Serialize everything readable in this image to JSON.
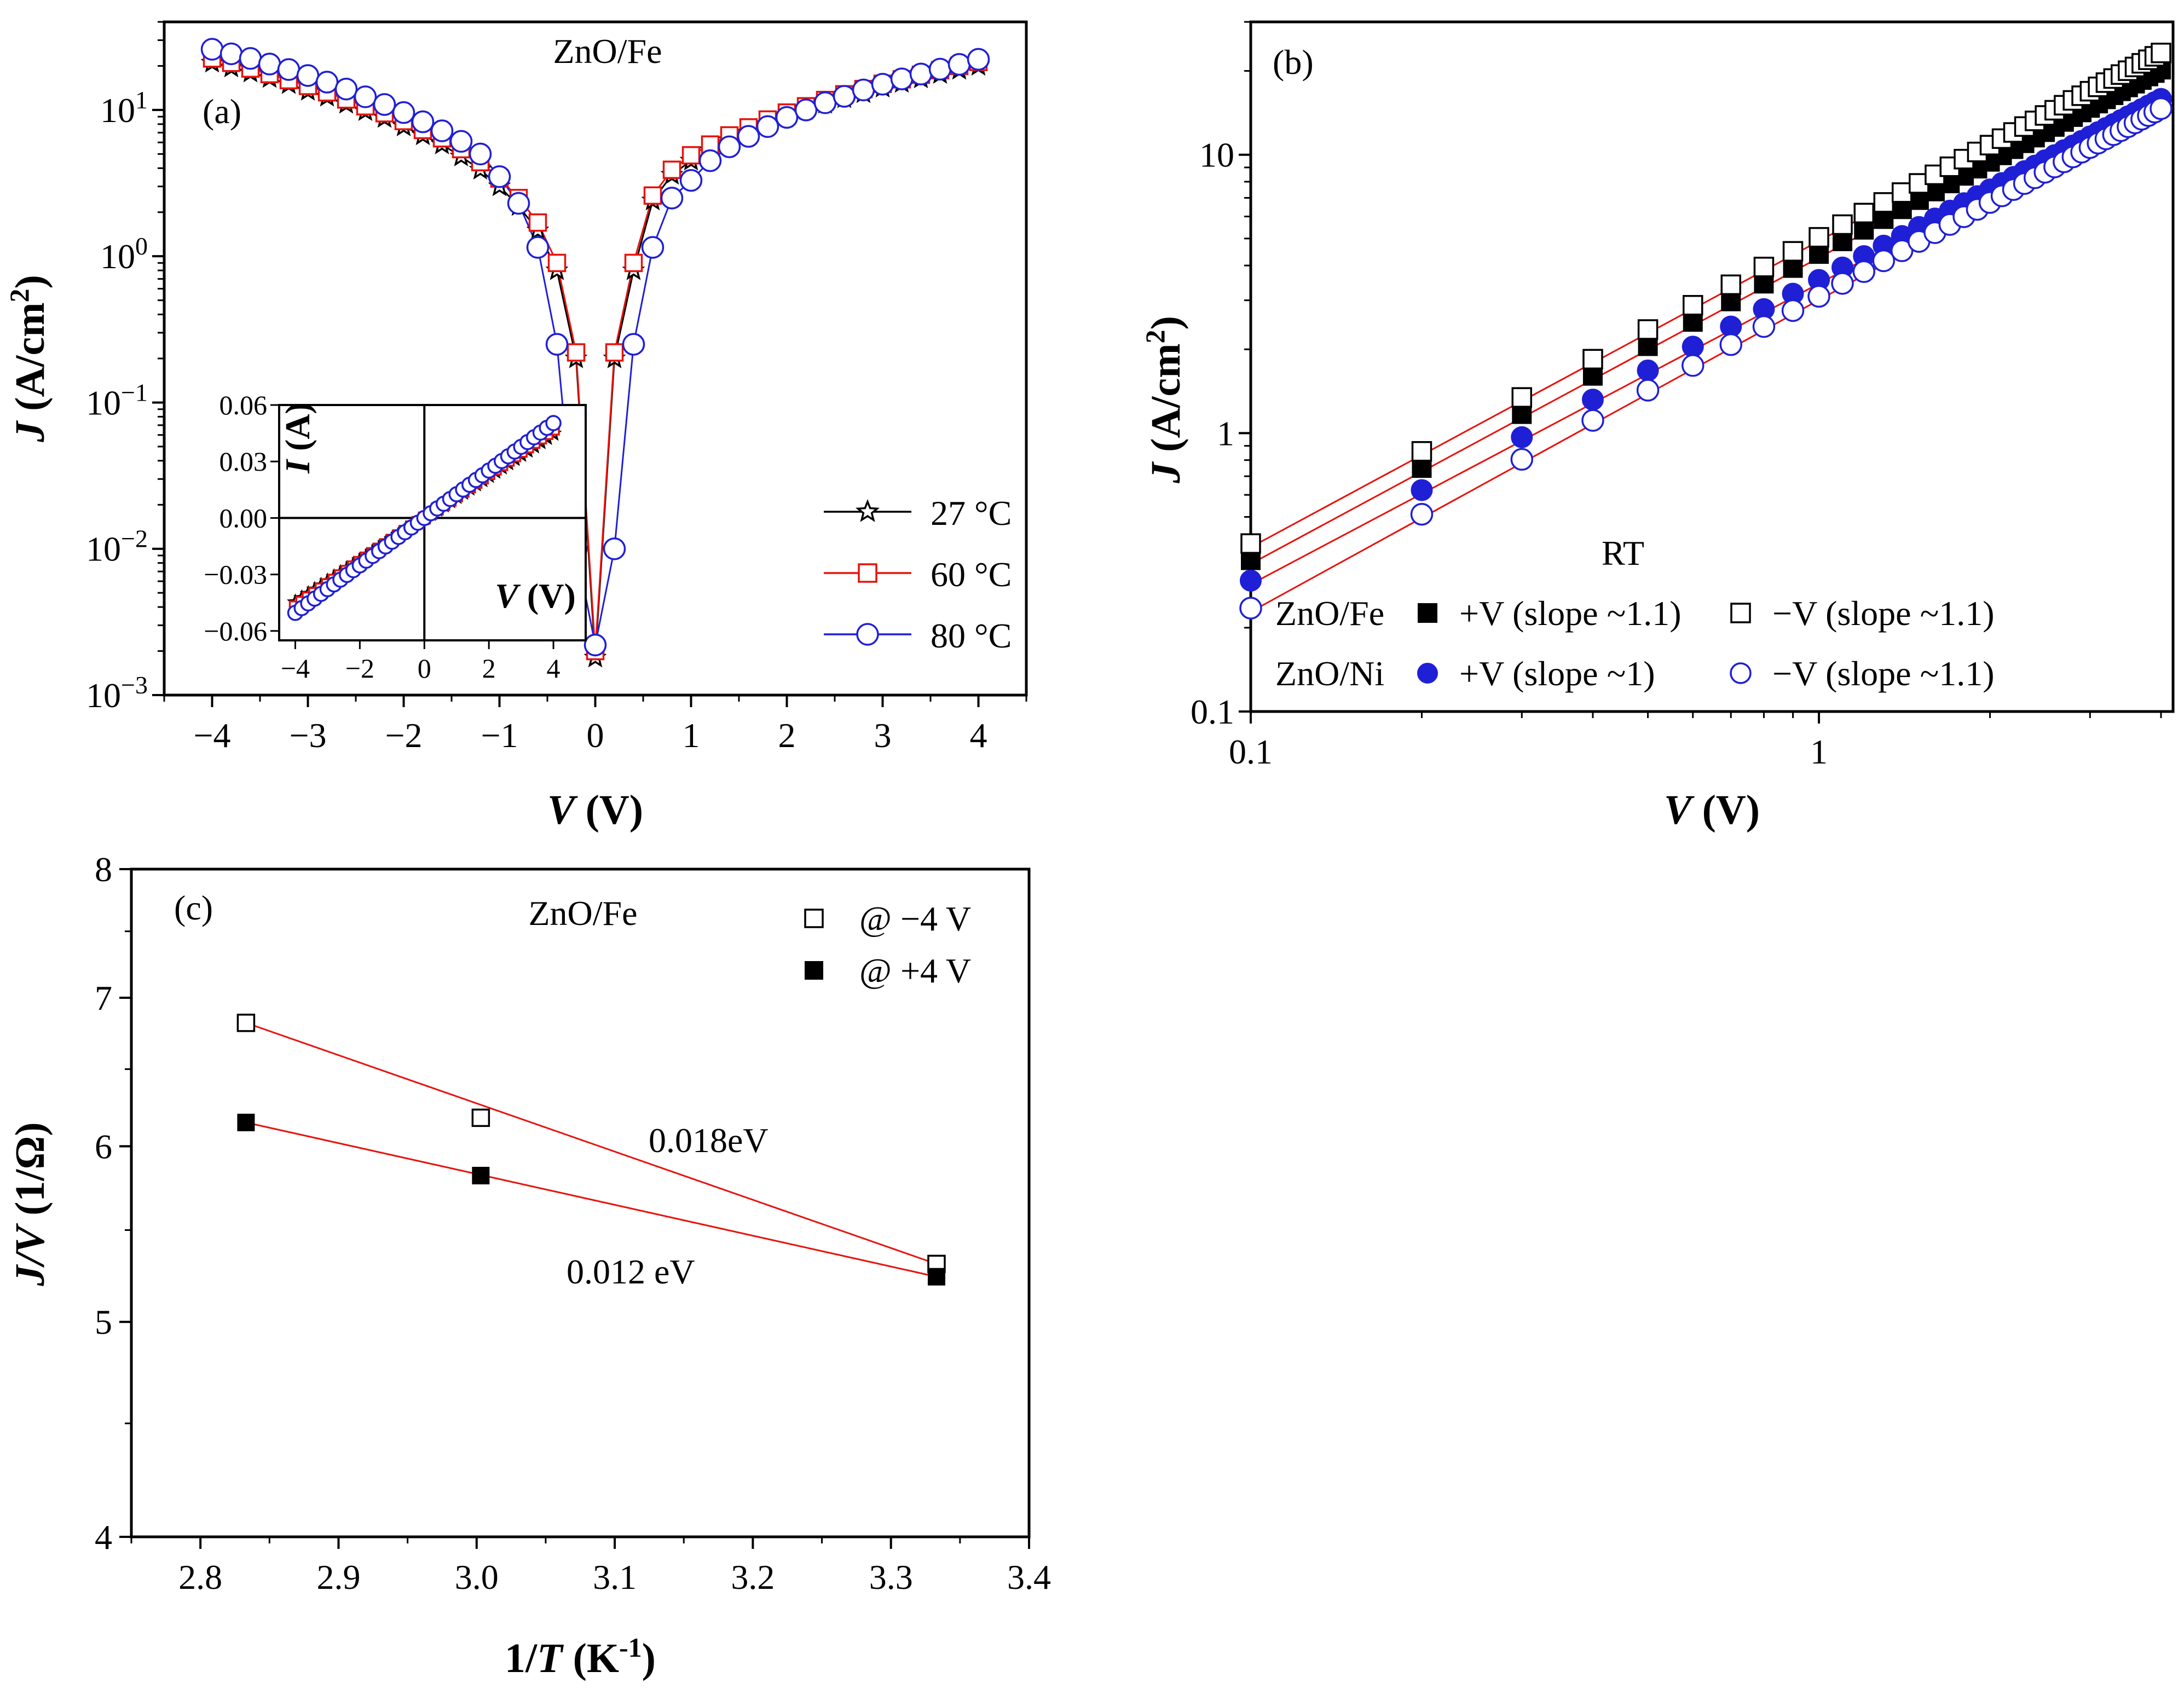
{
  "chart_data": [
    {
      "panel": "a",
      "type": "line",
      "panel_label": "(a)",
      "title": "ZnO/Fe",
      "xlabel_italic": "V",
      "xlabel_rest": " (V)",
      "ylabel_italic": "J",
      "ylabel_rest": " (A/cm",
      "ylabel_sup": "2",
      "ylabel_close": ")",
      "yscale": "log",
      "xlim": [
        -4.5,
        4.5
      ],
      "ylim": [
        0.001,
        40
      ],
      "xticks": [
        -4,
        -3,
        -2,
        -1,
        0,
        1,
        2,
        3,
        4
      ],
      "xtick_labels": [
        "−4",
        "−3",
        "−2",
        "−1",
        "0",
        "1",
        "2",
        "3",
        "4"
      ],
      "yticks": [
        {
          "v": 0.001,
          "base": "10",
          "exp": "−3"
        },
        {
          "v": 0.01,
          "base": "10",
          "exp": "−2"
        },
        {
          "v": 0.1,
          "base": "10",
          "exp": "−1"
        },
        {
          "v": 1,
          "base": "10",
          "exp": "0"
        },
        {
          "v": 10,
          "base": "10",
          "exp": "1"
        }
      ],
      "x": [
        -4.0,
        -3.8,
        -3.6,
        -3.4,
        -3.2,
        -3.0,
        -2.8,
        -2.6,
        -2.4,
        -2.2,
        -2.0,
        -1.8,
        -1.6,
        -1.4,
        -1.2,
        -1.0,
        -0.8,
        -0.6,
        -0.4,
        -0.2,
        0.0,
        0.2,
        0.4,
        0.6,
        0.8,
        1.0,
        1.2,
        1.4,
        1.6,
        1.8,
        2.0,
        2.2,
        2.4,
        2.6,
        2.8,
        3.0,
        3.2,
        3.4,
        3.6,
        3.8,
        4.0
      ],
      "series": [
        {
          "name": "27 °C",
          "marker": "star",
          "color": "#000000",
          "values": [
            21.0,
            19.5,
            18.0,
            16.5,
            15.0,
            13.5,
            12.3,
            11.0,
            9.8,
            8.8,
            7.7,
            6.7,
            5.8,
            4.8,
            3.9,
            3.0,
            2.2,
            1.5,
            0.8,
            0.2,
            0.0018,
            0.2,
            0.8,
            2.4,
            3.6,
            4.5,
            5.3,
            6.2,
            7.0,
            8.0,
            9.0,
            10.0,
            11.0,
            12.0,
            13.0,
            14.2,
            15.3,
            16.4,
            17.6,
            18.8,
            20.0
          ]
        },
        {
          "name": "60 °C",
          "marker": "square",
          "color": "#e8120c",
          "values": [
            22.5,
            21.0,
            19.2,
            17.6,
            16.0,
            14.6,
            13.2,
            11.8,
            10.6,
            9.5,
            8.4,
            7.3,
            6.4,
            5.4,
            4.4,
            3.4,
            2.5,
            1.7,
            0.9,
            0.22,
            0.002,
            0.22,
            0.9,
            2.6,
            3.9,
            4.9,
            5.8,
            6.7,
            7.6,
            8.6,
            9.6,
            10.6,
            11.7,
            12.8,
            13.9,
            15.1,
            16.2,
            17.4,
            18.7,
            20.0,
            21.3
          ]
        },
        {
          "name": "80 °C",
          "marker": "circle",
          "color": "#1f1fd6",
          "values": [
            26.0,
            24.2,
            22.5,
            20.6,
            18.9,
            17.2,
            15.5,
            13.9,
            12.3,
            10.9,
            9.6,
            8.3,
            7.2,
            6.1,
            5.0,
            3.5,
            2.3,
            1.15,
            0.25,
            0.01,
            0.0022,
            0.01,
            0.25,
            1.15,
            2.5,
            3.3,
            4.5,
            5.6,
            6.6,
            7.7,
            8.9,
            10.0,
            11.2,
            12.4,
            13.7,
            15.0,
            16.3,
            17.6,
            19.0,
            20.5,
            22.2
          ]
        }
      ],
      "legend_position": "lower-right",
      "inset": {
        "xlabel_italic": "V",
        "xlabel_rest": " (V)",
        "ylabel_italic": "I",
        "ylabel_rest": " (A)",
        "xlim": [
          -4.5,
          5.0
        ],
        "ylim": [
          -0.065,
          0.06
        ],
        "xticks": [
          -4,
          -2,
          0,
          2,
          4
        ],
        "xtick_labels": [
          "−4",
          "−2",
          "0",
          "2",
          "4"
        ],
        "yticks": [
          -0.06,
          -0.03,
          0.0,
          0.03,
          0.06
        ],
        "ytick_labels": [
          "−0.06",
          "−0.03",
          "0.00",
          "0.03",
          "0.06"
        ],
        "x": [
          -4.0,
          -3.8,
          -3.6,
          -3.4,
          -3.2,
          -3.0,
          -2.8,
          -2.6,
          -2.4,
          -2.2,
          -2.0,
          -1.8,
          -1.6,
          -1.4,
          -1.2,
          -1.0,
          -0.8,
          -0.6,
          -0.4,
          -0.2,
          0.0,
          0.2,
          0.4,
          0.6,
          0.8,
          1.0,
          1.2,
          1.4,
          1.6,
          1.8,
          2.0,
          2.2,
          2.4,
          2.6,
          2.8,
          3.0,
          3.2,
          3.4,
          3.6,
          3.8,
          4.0
        ],
        "slopes": [
          0.0112,
          0.0118,
          0.0126
        ]
      }
    },
    {
      "panel": "b",
      "type": "scatter",
      "panel_label": "(b)",
      "annotation": "RT",
      "xlabel_italic": "V",
      "xlabel_rest": " (V)",
      "ylabel_italic": "J",
      "ylabel_rest": " (A/cm",
      "ylabel_sup": "2",
      "ylabel_close": ")",
      "xscale": "log",
      "yscale": "log",
      "xlim": [
        0.1,
        4.2
      ],
      "ylim": [
        0.1,
        30
      ],
      "xticks": [
        0.1,
        1
      ],
      "xtick_labels": [
        "0.1",
        "1"
      ],
      "yticks": [
        0.1,
        1,
        10
      ],
      "ytick_labels": [
        "0.1",
        "1",
        "10"
      ],
      "x": [
        0.1,
        0.2,
        0.3,
        0.4,
        0.5,
        0.6,
        0.7,
        0.8,
        0.9,
        1.0,
        1.1,
        1.2,
        1.3,
        1.4,
        1.5,
        1.6,
        1.7,
        1.8,
        1.9,
        2.0,
        2.1,
        2.2,
        2.3,
        2.4,
        2.5,
        2.6,
        2.7,
        2.8,
        2.9,
        3.0,
        3.1,
        3.2,
        3.3,
        3.4,
        3.5,
        3.6,
        3.7,
        3.8,
        3.9,
        4.0
      ],
      "groups": [
        {
          "sample": "ZnO/Fe",
          "items": [
            {
              "label": "+V (slope ~1.1)",
              "marker": "filled-square",
              "a": 4.4,
              "b": 1.1
            },
            {
              "label": "−V (slope ~1.1)",
              "marker": "open-square",
              "a": 5.05,
              "b": 1.1
            }
          ]
        },
        {
          "sample": "ZnO/Ni",
          "items": [
            {
              "label": "+V (slope ~1)",
              "marker": "filled-circle",
              "a": 3.55,
              "b": 1.08
            },
            {
              "label": "−V (slope ~1.1)",
              "marker": "open-circle",
              "a": 3.1,
              "b": 1.12
            }
          ]
        }
      ]
    },
    {
      "panel": "c",
      "type": "scatter",
      "panel_label": "(c)",
      "title": "ZnO/Fe",
      "xlabel_pre": "1/",
      "xlabel_italic": "T",
      "xlabel_rest": " (K",
      "xlabel_sup": "-1",
      "xlabel_close": ")",
      "ylabel_italic": "J/V",
      "ylabel_rest": " (1/Ω)",
      "yscale": "log",
      "xlim": [
        2.75,
        3.4
      ],
      "ylim": [
        4,
        8
      ],
      "xticks": [
        2.8,
        2.9,
        3.0,
        3.1,
        3.2,
        3.3,
        3.4
      ],
      "xtick_labels": [
        "2.8",
        "2.9",
        "3.0",
        "3.1",
        "3.2",
        "3.3",
        "3.4"
      ],
      "yticks": [
        4,
        5,
        6,
        7,
        8
      ],
      "ytick_labels": [
        "4",
        "5",
        "6",
        "7",
        "8"
      ],
      "series": [
        {
          "name": "@ −4 V",
          "marker": "open-square",
          "x": [
            2.833,
            3.003,
            3.333
          ],
          "values": [
            6.82,
            6.18,
            5.31
          ]
        },
        {
          "name": "@ +4 V",
          "marker": "filled-square",
          "x": [
            2.833,
            3.003,
            3.333
          ],
          "values": [
            6.15,
            5.82,
            5.24
          ]
        }
      ],
      "fit_labels": [
        "0.018eV",
        "0.012 eV"
      ]
    }
  ]
}
